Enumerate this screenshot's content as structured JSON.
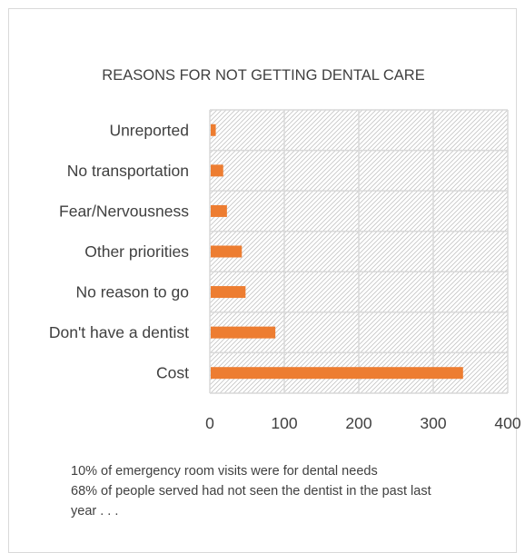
{
  "chart_data": {
    "type": "bar",
    "orientation": "horizontal",
    "title": "REASONS FOR NOT GETTING DENTAL CARE",
    "categories": [
      "Unreported",
      "No transportation",
      "Fear/Nervousness",
      "Other priorities",
      "No reason to go",
      "Don't have a dentist",
      "Cost"
    ],
    "values": [
      8,
      18,
      23,
      43,
      48,
      88,
      340
    ],
    "xlim": [
      0,
      400
    ],
    "x_ticks": [
      "0",
      "100",
      "200",
      "300",
      "400"
    ],
    "xlabel": "",
    "ylabel": "",
    "grid": true,
    "legend": "none",
    "bar_color": "#ed7d31",
    "plot_fill": "diagonal-hatch"
  },
  "notes": [
    "10% of emergency room visits were for dental needs",
    "68% of people served had not seen the dentist in the past last year . . ."
  ]
}
